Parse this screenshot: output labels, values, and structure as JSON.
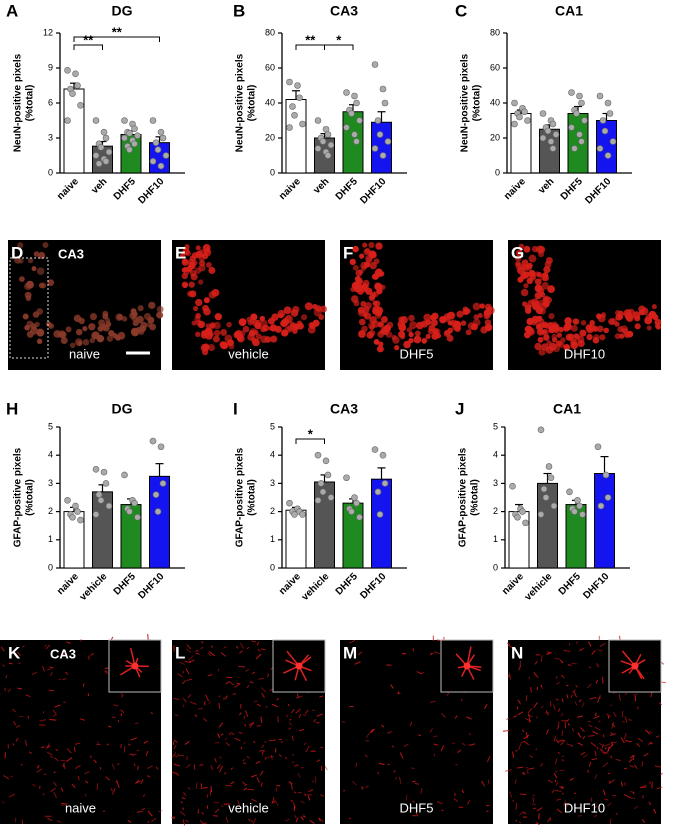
{
  "chart_data": [
    {
      "type": "bar",
      "panel": "A",
      "title": "DG",
      "ylabel": [
        "NeuN-positive pixels",
        "(%total)"
      ],
      "categories": [
        "naive",
        "veh",
        "DHF5",
        "DHF10"
      ],
      "values": [
        7.2,
        2.3,
        3.3,
        2.6
      ],
      "errors": [
        0.5,
        0.4,
        0.3,
        0.5
      ],
      "colors": [
        "#ffffff",
        "#555555",
        "#1f8a1f",
        "#1414f0"
      ],
      "points": [
        [
          8.8,
          8.5,
          7.5,
          7.2,
          6.8,
          5.8,
          4.5
        ],
        [
          4.5,
          3.5,
          3.0,
          2.5,
          2.2,
          1.8,
          1.5,
          1.2,
          1.0,
          0.8
        ],
        [
          4.5,
          4.2,
          3.8,
          3.5,
          3.4,
          3.2,
          3.0,
          2.8,
          2.5,
          2.3,
          2.0
        ],
        [
          4.5,
          3.5,
          3.0,
          2.6,
          2.0,
          1.5,
          1.0,
          0.6
        ]
      ],
      "ylim": [
        0,
        12
      ],
      "yticks": [
        0,
        3,
        6,
        9,
        12
      ],
      "significance": [
        {
          "between": [
            "naive",
            "veh"
          ],
          "label": "**"
        },
        {
          "between": [
            "naive",
            "DHF10"
          ],
          "label": "**"
        }
      ]
    },
    {
      "type": "bar",
      "panel": "B",
      "title": "CA3",
      "ylabel": [
        "NeuN-positive pixels",
        "(%total)"
      ],
      "categories": [
        "naive",
        "veh",
        "DHF5",
        "DHF10"
      ],
      "values": [
        42,
        20,
        35,
        29
      ],
      "errors": [
        5,
        2.5,
        4,
        6
      ],
      "colors": [
        "#ffffff",
        "#555555",
        "#1f8a1f",
        "#1414f0"
      ],
      "points": [
        [
          52,
          50,
          43,
          38,
          33,
          28,
          26
        ],
        [
          30,
          25,
          22,
          20,
          18,
          16,
          14,
          12,
          10
        ],
        [
          46,
          44,
          40,
          36,
          34,
          30,
          26,
          22,
          18
        ],
        [
          62,
          48,
          40,
          30,
          22,
          18,
          14,
          10
        ]
      ],
      "ylim": [
        0,
        80
      ],
      "yticks": [
        0,
        20,
        40,
        60,
        80
      ],
      "significance": [
        {
          "between": [
            "naive",
            "veh"
          ],
          "label": "**"
        },
        {
          "between": [
            "veh",
            "DHF5"
          ],
          "label": "*"
        }
      ]
    },
    {
      "type": "bar",
      "panel": "C",
      "title": "CA1",
      "ylabel": [
        "NeuN-positive pixels",
        "(%total)"
      ],
      "categories": [
        "naive",
        "veh",
        "DHF5",
        "DHF10"
      ],
      "values": [
        34,
        25,
        34,
        30
      ],
      "errors": [
        2,
        2.5,
        4,
        4
      ],
      "colors": [
        "#ffffff",
        "#555555",
        "#1f8a1f",
        "#1414f0"
      ],
      "points": [
        [
          40,
          37,
          35,
          34,
          32,
          30,
          28
        ],
        [
          34,
          30,
          28,
          26,
          24,
          22,
          20,
          18,
          14
        ],
        [
          46,
          44,
          40,
          36,
          34,
          30,
          26,
          22,
          18,
          14
        ],
        [
          44,
          40,
          34,
          30,
          24,
          18,
          14,
          10
        ]
      ],
      "ylim": [
        0,
        80
      ],
      "yticks": [
        0,
        20,
        40,
        60,
        80
      ],
      "significance": []
    },
    {
      "type": "bar",
      "panel": "H",
      "title": "DG",
      "ylabel": [
        "GFAP-positive pixels",
        "(%total)"
      ],
      "categories": [
        "naive",
        "vehicle",
        "DHF5",
        "DHF10"
      ],
      "values": [
        2.0,
        2.7,
        2.25,
        3.25
      ],
      "errors": [
        0.15,
        0.25,
        0.2,
        0.45
      ],
      "colors": [
        "#ffffff",
        "#555555",
        "#1f8a1f",
        "#1414f0"
      ],
      "points": [
        [
          2.4,
          2.2,
          2.0,
          1.9,
          1.8,
          1.7
        ],
        [
          3.5,
          3.4,
          3.0,
          2.6,
          2.4,
          2.2,
          1.9
        ],
        [
          3.3,
          2.4,
          2.3,
          2.1,
          2.0,
          1.8
        ],
        [
          4.5,
          4.3,
          3.0,
          2.6,
          2.0
        ]
      ],
      "ylim": [
        0,
        5
      ],
      "yticks": [
        0,
        1,
        2,
        3,
        4,
        5
      ],
      "significance": []
    },
    {
      "type": "bar",
      "panel": "I",
      "title": "CA3",
      "ylabel": [
        "GFAP-positive pixels",
        "(%total)"
      ],
      "categories": [
        "naive",
        "vehicle",
        "DHF5",
        "DHF10"
      ],
      "values": [
        2.05,
        3.05,
        2.3,
        3.15
      ],
      "errors": [
        0.1,
        0.25,
        0.15,
        0.4
      ],
      "colors": [
        "#ffffff",
        "#555555",
        "#1f8a1f",
        "#1414f0"
      ],
      "points": [
        [
          2.3,
          2.1,
          2.0,
          2.0,
          1.9,
          1.9
        ],
        [
          4.0,
          3.8,
          3.3,
          3.0,
          2.7,
          2.5,
          2.4
        ],
        [
          3.2,
          2.5,
          2.3,
          2.1,
          2.0,
          1.8
        ],
        [
          4.2,
          4.0,
          3.0,
          2.7,
          1.9
        ]
      ],
      "ylim": [
        0,
        5
      ],
      "yticks": [
        0,
        1,
        2,
        3,
        4,
        5
      ],
      "significance": [
        {
          "between": [
            "naive",
            "vehicle"
          ],
          "label": "*"
        }
      ]
    },
    {
      "type": "bar",
      "panel": "J",
      "title": "CA1",
      "ylabel": [
        "GFAP-positive pixels",
        "(%total)"
      ],
      "categories": [
        "naive",
        "vehicle",
        "DHF5",
        "DHF10"
      ],
      "values": [
        2.0,
        3.0,
        2.25,
        3.35
      ],
      "errors": [
        0.25,
        0.35,
        0.15,
        0.6
      ],
      "colors": [
        "#ffffff",
        "#555555",
        "#1f8a1f",
        "#1414f0"
      ],
      "points": [
        [
          2.9,
          2.1,
          2.0,
          1.9,
          1.8,
          1.6
        ],
        [
          4.9,
          3.6,
          3.2,
          2.8,
          2.5,
          2.2,
          1.9
        ],
        [
          2.7,
          2.4,
          2.2,
          2.1,
          2.0,
          1.9
        ],
        [
          4.3,
          3.3,
          2.5,
          2.2
        ]
      ],
      "ylim": [
        0,
        5
      ],
      "yticks": [
        0,
        1,
        2,
        3,
        4,
        5
      ],
      "significance": []
    }
  ],
  "micrographs": [
    {
      "letter": "D",
      "region": "CA3",
      "label": "naive"
    },
    {
      "letter": "E",
      "label": "vehicle"
    },
    {
      "letter": "F",
      "label": "DHF5"
    },
    {
      "letter": "G",
      "label": "DHF10"
    },
    {
      "letter": "K",
      "region": "CA3",
      "label": "naive"
    },
    {
      "letter": "L",
      "label": "vehicle"
    },
    {
      "letter": "M",
      "label": "DHF5"
    },
    {
      "letter": "N",
      "label": "DHF10"
    }
  ]
}
